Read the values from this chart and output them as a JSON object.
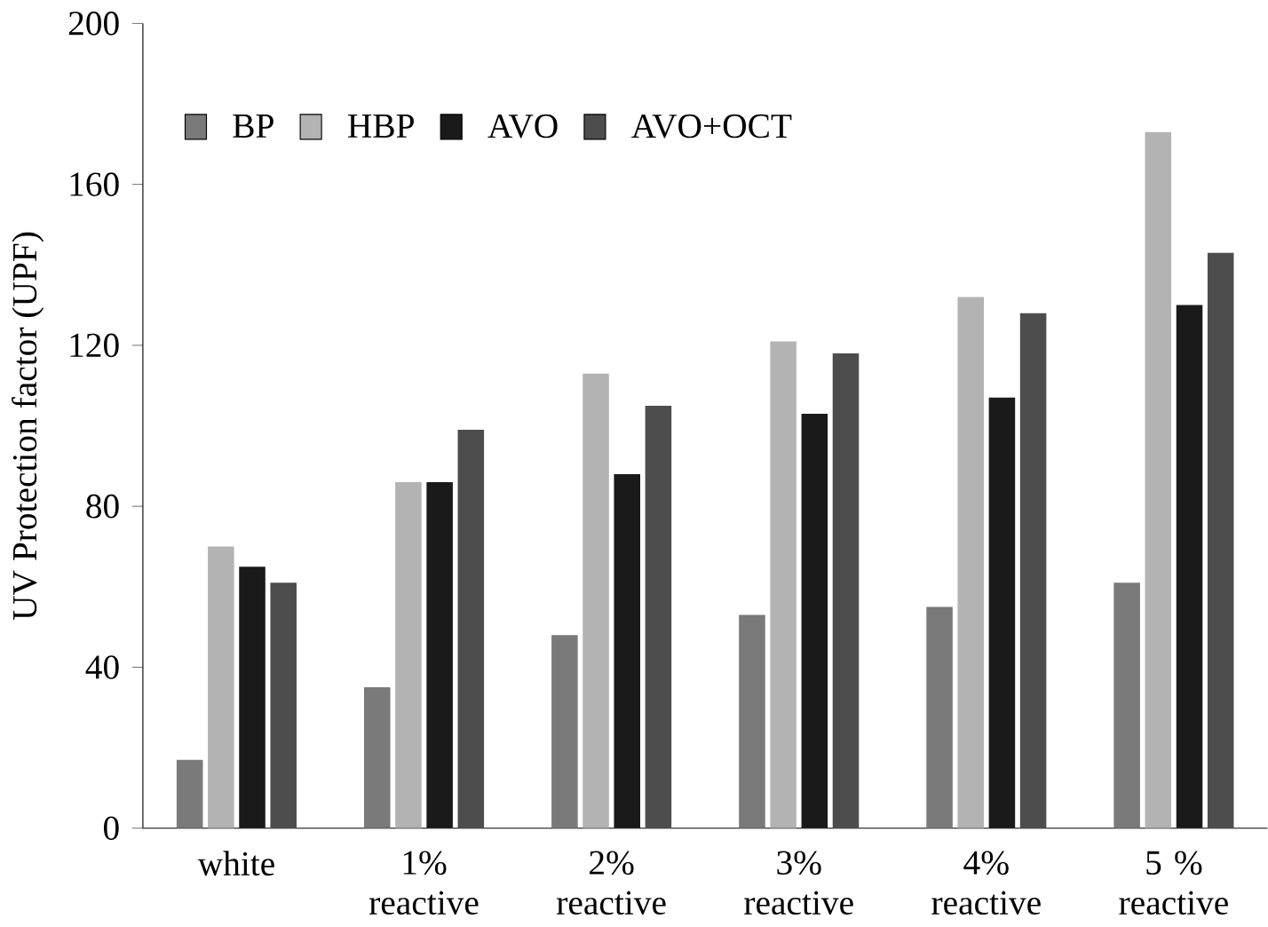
{
  "chart_data": {
    "type": "bar",
    "ylabel": "UV Protection factor (UPF)",
    "categories": [
      "white",
      "1% reactive",
      "2% reactive",
      "3% reactive",
      "4% reactive",
      "5 % reactive"
    ],
    "series": [
      {
        "name": "BP",
        "color": "#7a7a7a",
        "values": [
          17,
          35,
          48,
          53,
          55,
          61
        ]
      },
      {
        "name": "HBP",
        "color": "#b3b3b3",
        "values": [
          70,
          86,
          113,
          121,
          132,
          173
        ]
      },
      {
        "name": "AVO",
        "color": "#1a1a1a",
        "values": [
          65,
          86,
          88,
          103,
          107,
          130
        ]
      },
      {
        "name": "AVO+OCT",
        "color": "#4d4d4d",
        "values": [
          61,
          99,
          105,
          118,
          128,
          143
        ]
      }
    ],
    "ylim": [
      0,
      200
    ],
    "yticks": [
      0,
      40,
      80,
      120,
      160,
      200
    ],
    "grid": false,
    "legend": "top left"
  }
}
